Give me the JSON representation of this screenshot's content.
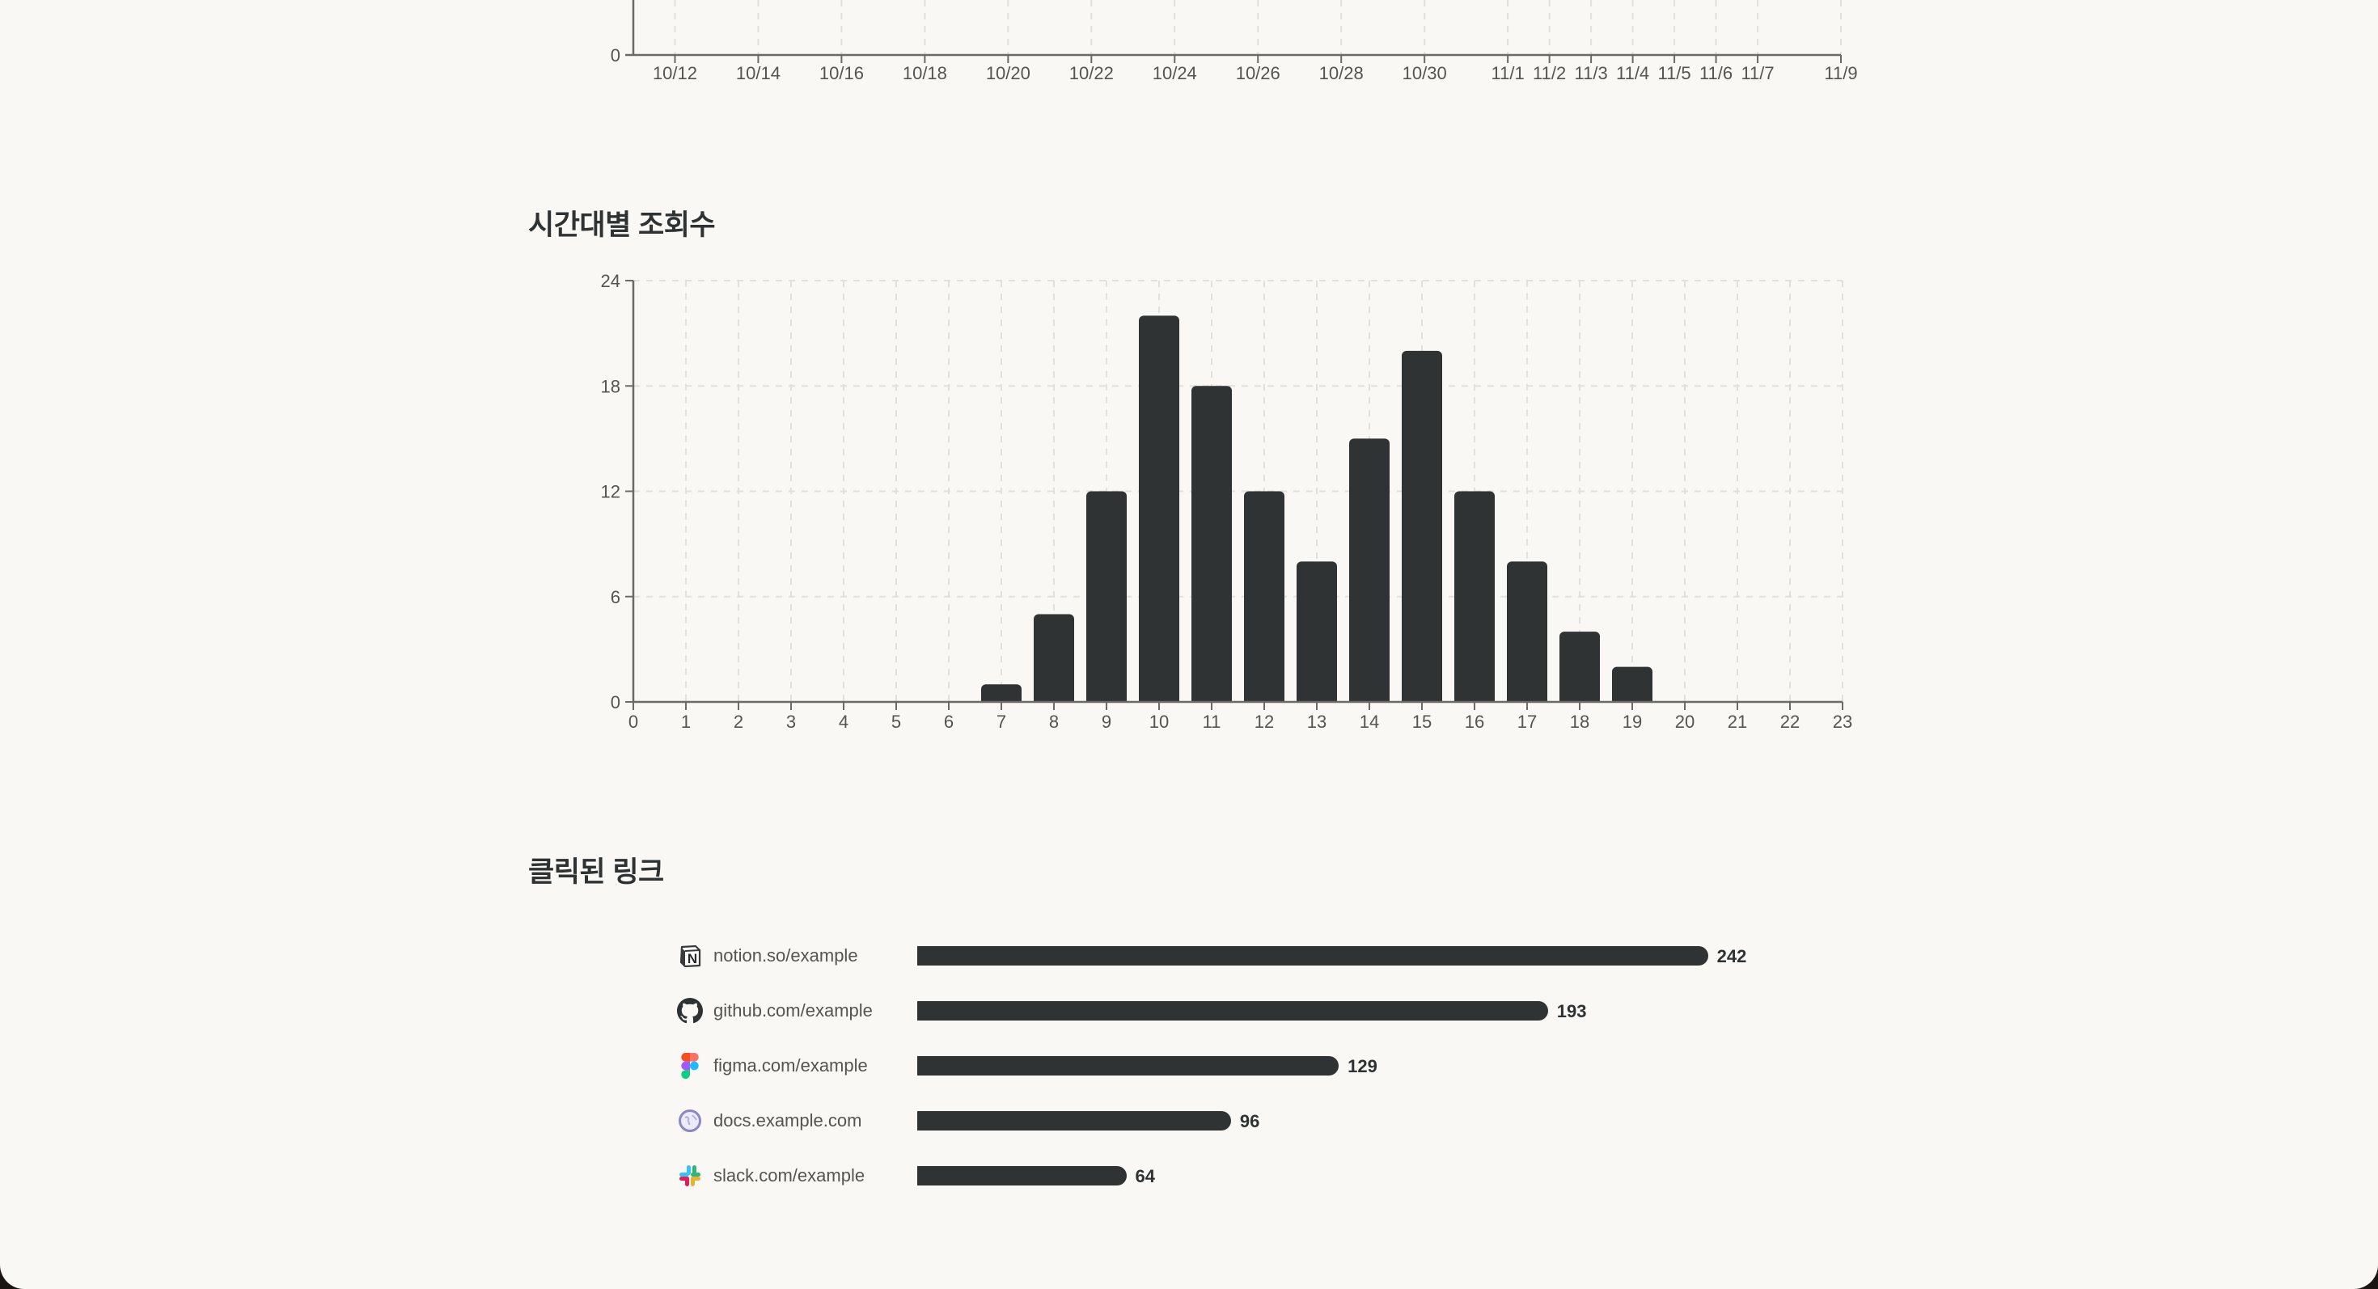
{
  "colors": {
    "background": "#f9f8f5",
    "bar": "#2f3333",
    "axis": "#6b6a66",
    "grid": "#e2e0db",
    "tick_label": "#55544f",
    "title": "#2f3233"
  },
  "sections": {
    "daily_views": {
      "title": ""
    },
    "hourly_views": {
      "title": "시간대별 조회수"
    },
    "clicked_links": {
      "title": "클릭된 링크"
    }
  },
  "chart_data": [
    {
      "id": "daily-views-chart",
      "type": "line",
      "title": "",
      "partially_visible": true,
      "xlabel": "",
      "ylabel": "",
      "x_tick_labels": [
        "10/12",
        "10/14",
        "10/16",
        "10/18",
        "10/20",
        "10/22",
        "10/24",
        "10/26",
        "10/28",
        "10/30",
        "11/1",
        "11/2",
        "11/3",
        "11/4",
        "11/5",
        "11/6",
        "11/7",
        "11/9"
      ],
      "x_tick_day_index": [
        1,
        3,
        5,
        7,
        9,
        11,
        13,
        15,
        17,
        19,
        21,
        22,
        23,
        24,
        25,
        26,
        27,
        29
      ],
      "x_domain": [
        "10/11",
        "11/9"
      ],
      "y_tick_labels": [
        "0"
      ],
      "grid": true
    },
    {
      "id": "hourly-views-chart",
      "type": "bar",
      "title": "시간대별 조회수",
      "xlabel": "",
      "ylabel": "",
      "categories": [
        "0",
        "1",
        "2",
        "3",
        "4",
        "5",
        "6",
        "7",
        "8",
        "9",
        "10",
        "11",
        "12",
        "13",
        "14",
        "15",
        "16",
        "17",
        "18",
        "19",
        "20",
        "21",
        "22",
        "23"
      ],
      "values": [
        0,
        0,
        0,
        0,
        0,
        0,
        0,
        1,
        5,
        12,
        22,
        18,
        12,
        8,
        15,
        20,
        12,
        8,
        4,
        2,
        0,
        0,
        0,
        0
      ],
      "y_ticks": [
        0,
        6,
        12,
        18,
        24
      ],
      "ylim": [
        0,
        24
      ],
      "grid": true,
      "legend": null
    },
    {
      "id": "clicked-links-chart",
      "type": "bar",
      "orientation": "horizontal",
      "title": "클릭된 링크",
      "categories": [
        "notion.so/example",
        "github.com/example",
        "figma.com/example",
        "docs.example.com",
        "slack.com/example"
      ],
      "values": [
        242,
        193,
        129,
        96,
        64
      ],
      "icons": [
        "notion-icon",
        "github-icon",
        "figma-icon",
        "globe-icon",
        "slack-icon"
      ],
      "show_value_labels": true
    }
  ],
  "links": [
    {
      "label": "notion.so/example",
      "value": "242",
      "icon": "notion-icon"
    },
    {
      "label": "github.com/example",
      "value": "193",
      "icon": "github-icon"
    },
    {
      "label": "figma.com/example",
      "value": "129",
      "icon": "figma-icon"
    },
    {
      "label": "docs.example.com",
      "value": "96",
      "icon": "globe-icon"
    },
    {
      "label": "slack.com/example",
      "value": "64",
      "icon": "slack-icon"
    }
  ]
}
